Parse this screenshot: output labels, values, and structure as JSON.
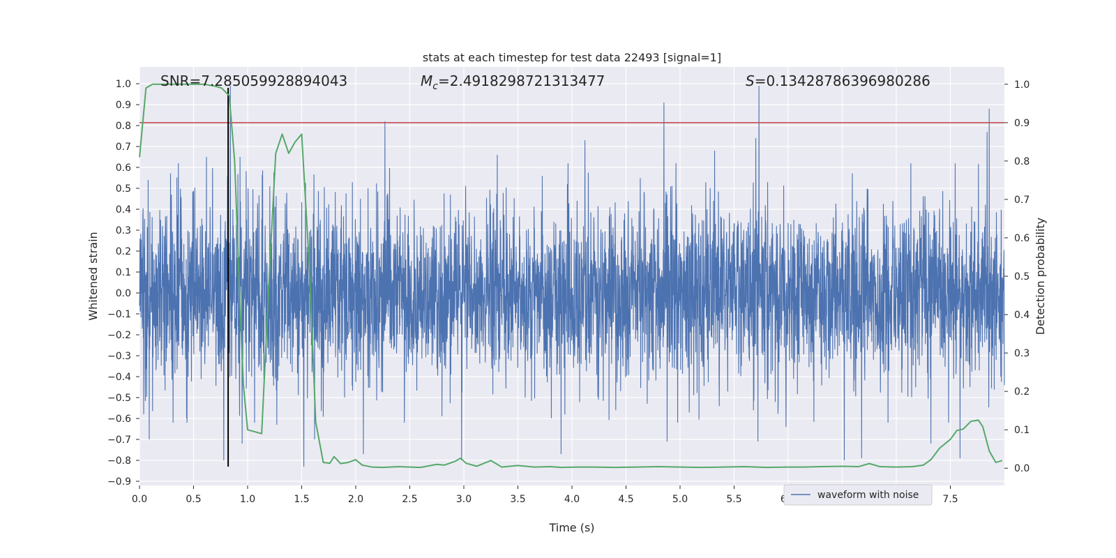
{
  "chart_data": {
    "type": "line",
    "title": "stats at each timestep for test data 22493 [signal=1]",
    "xlabel": "Time (s)",
    "ylabel": "Whitened strain",
    "y2label": "Detection probability",
    "xlim": [
      0.0,
      8.0
    ],
    "ylim": [
      -0.92,
      1.08
    ],
    "y2lim": [
      -0.045,
      1.045
    ],
    "x_ticks": [
      "0.0",
      "0.5",
      "1.0",
      "1.5",
      "2.0",
      "2.5",
      "3.0",
      "3.5",
      "4.0",
      "4.5",
      "5.0",
      "5.5",
      "6.0",
      "6.5",
      "7.0",
      "7.5"
    ],
    "y_ticks": [
      "1.0",
      "0.9",
      "0.8",
      "0.7",
      "0.6",
      "0.5",
      "0.4",
      "0.3",
      "0.2",
      "0.1",
      "0.0",
      "−0.1",
      "−0.2",
      "−0.3",
      "−0.4",
      "−0.5",
      "−0.6",
      "−0.7",
      "−0.8",
      "−0.9"
    ],
    "y2_ticks": [
      "1.0",
      "0.9",
      "0.8",
      "0.7",
      "0.6",
      "0.5",
      "0.4",
      "0.3",
      "0.2",
      "0.1",
      "0.0"
    ],
    "grid": true,
    "legend_position": "lower-right",
    "annotations": {
      "snr": "SNR=7.285059928894043",
      "mc_symbol": "M",
      "mc_sub": "c",
      "mc_value": "=2.4918298721313477",
      "s_symbol": "S",
      "s_value": "=0.13428786396980286"
    },
    "threshold": {
      "y2": 0.9,
      "color": "#c44e52"
    },
    "marker_line": {
      "x": 0.82,
      "y_range": [
        -0.83,
        0.98
      ],
      "color": "#000000"
    },
    "series": [
      {
        "name": "waveform with noise",
        "color": "#4c72b0",
        "style": "noise",
        "seed": 22493,
        "amplitude_envelope": {
          "x": [
            0.0,
            1.0,
            2.0,
            4.0,
            6.0,
            7.0,
            8.0
          ],
          "y": [
            0.32,
            0.36,
            0.33,
            0.33,
            0.33,
            0.34,
            0.34
          ]
        },
        "spikes": [
          {
            "x": 0.04,
            "y": -0.58
          },
          {
            "x": 0.08,
            "y": 0.54
          },
          {
            "x": 0.09,
            "y": -0.7
          },
          {
            "x": 0.36,
            "y": 0.62
          },
          {
            "x": 0.62,
            "y": 0.65
          },
          {
            "x": 0.78,
            "y": -0.8
          },
          {
            "x": 0.84,
            "y": 0.99
          },
          {
            "x": 0.93,
            "y": 0.65
          },
          {
            "x": 0.95,
            "y": -0.72
          },
          {
            "x": 1.27,
            "y": -0.63
          },
          {
            "x": 1.52,
            "y": -0.83
          },
          {
            "x": 1.62,
            "y": -0.7
          },
          {
            "x": 2.07,
            "y": -0.77
          },
          {
            "x": 2.27,
            "y": 0.82
          },
          {
            "x": 2.98,
            "y": -0.8
          },
          {
            "x": 3.31,
            "y": 0.66
          },
          {
            "x": 3.9,
            "y": -0.77
          },
          {
            "x": 4.12,
            "y": 0.73
          },
          {
            "x": 4.85,
            "y": 0.91
          },
          {
            "x": 4.88,
            "y": -0.71
          },
          {
            "x": 5.32,
            "y": 0.68
          },
          {
            "x": 5.7,
            "y": 0.74
          },
          {
            "x": 5.73,
            "y": 0.99
          },
          {
            "x": 5.72,
            "y": -0.71
          },
          {
            "x": 5.98,
            "y": -0.64
          },
          {
            "x": 6.52,
            "y": -0.8
          },
          {
            "x": 6.68,
            "y": -0.79
          },
          {
            "x": 7.32,
            "y": -0.72
          },
          {
            "x": 7.59,
            "y": -0.79
          },
          {
            "x": 7.84,
            "y": 0.77
          },
          {
            "x": 7.86,
            "y": 0.88
          }
        ]
      },
      {
        "name": "detection probability",
        "color": "#55a868",
        "axis": "y2",
        "x": [
          0.0,
          0.06,
          0.12,
          0.2,
          0.3,
          0.4,
          0.5,
          0.6,
          0.7,
          0.76,
          0.83,
          0.88,
          0.92,
          0.96,
          1.0,
          1.13,
          1.2,
          1.26,
          1.32,
          1.38,
          1.44,
          1.5,
          1.57,
          1.63,
          1.7,
          1.76,
          1.8,
          1.86,
          1.93,
          2.0,
          2.06,
          2.15,
          2.25,
          2.4,
          2.5,
          2.6,
          2.75,
          2.82,
          2.92,
          2.97,
          3.02,
          3.12,
          3.25,
          3.35,
          3.5,
          3.65,
          3.8,
          3.9,
          4.05,
          4.2,
          4.4,
          4.6,
          4.8,
          5.0,
          5.2,
          5.4,
          5.6,
          5.8,
          6.0,
          6.15,
          6.3,
          6.5,
          6.65,
          6.75,
          6.85,
          7.0,
          7.15,
          7.25,
          7.32,
          7.4,
          7.5,
          7.56,
          7.62,
          7.69,
          7.76,
          7.8,
          7.86,
          7.92,
          7.98
        ],
        "y": [
          0.81,
          0.99,
          1.0,
          1.0,
          1.0,
          1.0,
          1.0,
          1.0,
          0.995,
          0.99,
          0.97,
          0.8,
          0.5,
          0.22,
          0.1,
          0.09,
          0.5,
          0.82,
          0.87,
          0.82,
          0.85,
          0.87,
          0.53,
          0.12,
          0.015,
          0.013,
          0.03,
          0.012,
          0.015,
          0.022,
          0.008,
          0.003,
          0.002,
          0.004,
          0.003,
          0.002,
          0.01,
          0.008,
          0.018,
          0.026,
          0.013,
          0.005,
          0.02,
          0.003,
          0.007,
          0.003,
          0.004,
          0.002,
          0.003,
          0.003,
          0.002,
          0.003,
          0.004,
          0.003,
          0.002,
          0.003,
          0.004,
          0.002,
          0.003,
          0.003,
          0.004,
          0.005,
          0.004,
          0.012,
          0.004,
          0.003,
          0.004,
          0.008,
          0.022,
          0.052,
          0.075,
          0.098,
          0.102,
          0.122,
          0.125,
          0.108,
          0.045,
          0.015,
          0.02
        ]
      }
    ]
  }
}
